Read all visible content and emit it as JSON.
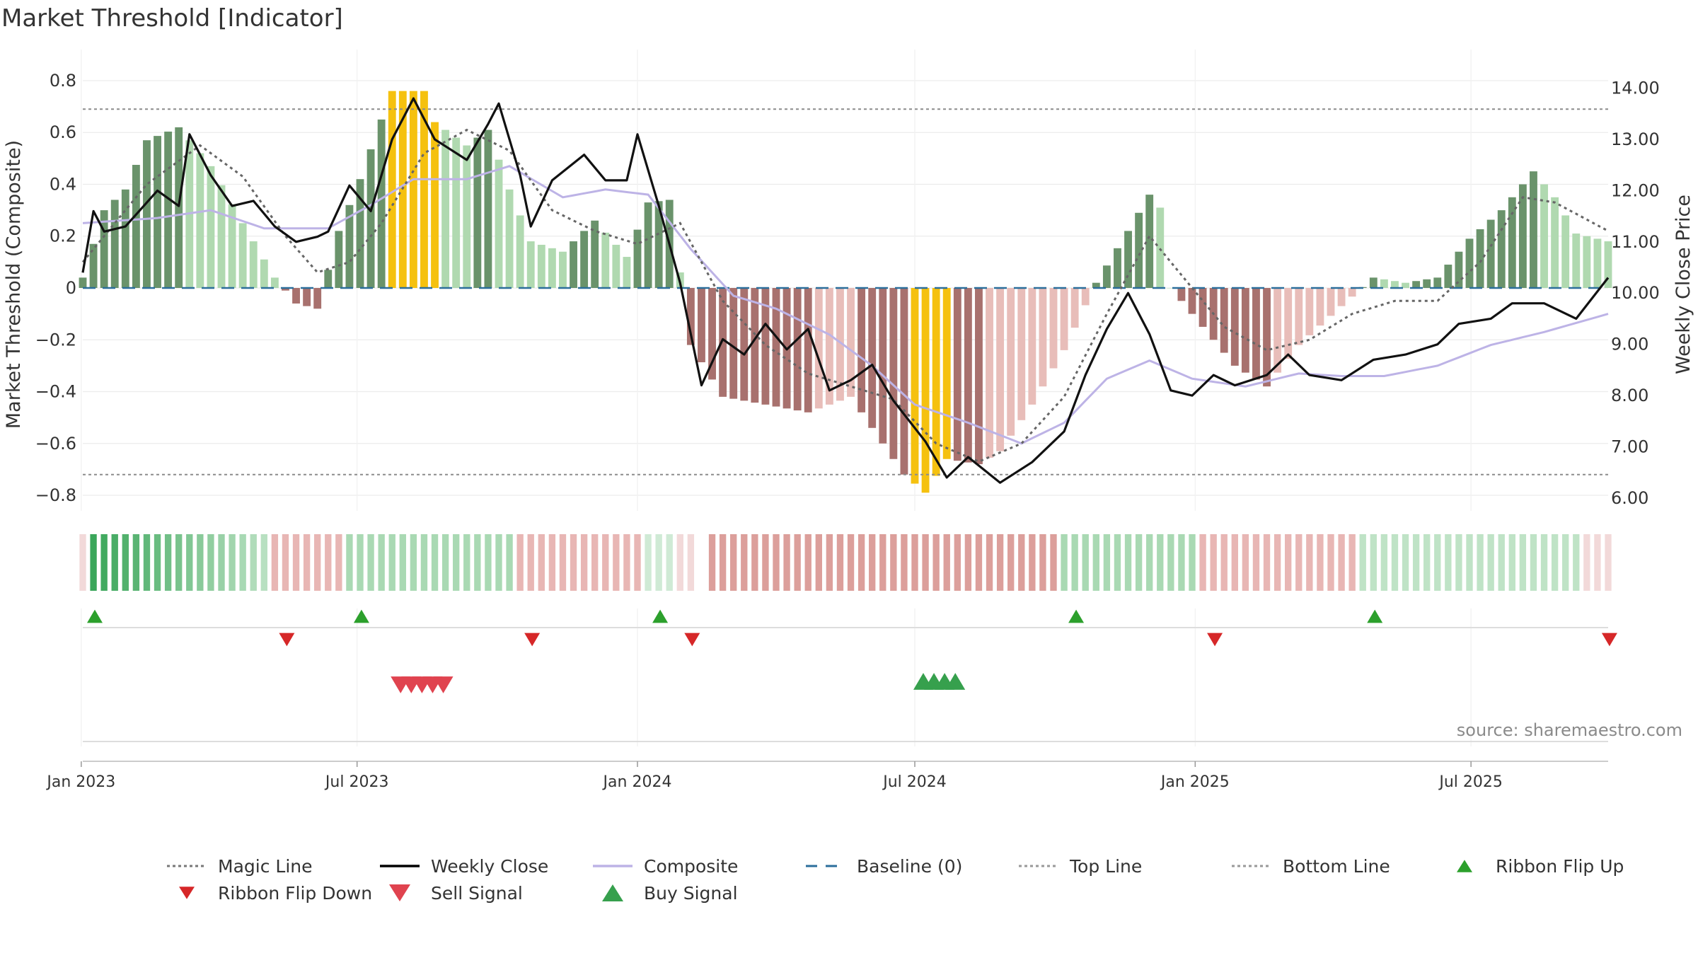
{
  "chart_data": {
    "type": "bar",
    "title": "Market Threshold [Indicator]",
    "ylabel_left": "Market Threshold (Composite)",
    "ylabel_right": "Weekly Close Price",
    "source": "source: sharemaestro.com",
    "x_range": [
      "2023-01-02",
      "2025-09-29"
    ],
    "ylim_left": [
      -0.86,
      0.86
    ],
    "ylim_right": [
      5.75,
      14.45
    ],
    "left_ticks": [
      0.8,
      0.6,
      0.4,
      0.2,
      0,
      -0.2,
      -0.4,
      -0.6,
      -0.8
    ],
    "left_tick_labels": [
      "0.8",
      "0.6",
      "0.4",
      "0.2",
      "0",
      "−0.2",
      "−0.4",
      "−0.6",
      "−0.8"
    ],
    "right_ticks": [
      14,
      13,
      12,
      11,
      10,
      9,
      8,
      7,
      6
    ],
    "right_tick_labels": [
      "14.00",
      "13.00",
      "12.00",
      "11.00",
      "10.00",
      "9.00",
      "8.00",
      "7.00",
      "6.00"
    ],
    "x_ticks": [
      {
        "date": "2023-01-01",
        "label": "Jan 2023"
      },
      {
        "date": "2023-07-01",
        "label": "Jul 2023"
      },
      {
        "date": "2024-01-01",
        "label": "Jan 2024"
      },
      {
        "date": "2024-07-01",
        "label": "Jul 2024"
      },
      {
        "date": "2025-01-01",
        "label": "Jan 2025"
      },
      {
        "date": "2025-07-01",
        "label": "Jul 2025"
      }
    ],
    "top_line": 0.69,
    "bottom_line": -0.72,
    "histogram_anchors": [
      [
        "2023-01-02",
        0.04
      ],
      [
        "2023-01-16",
        0.3
      ],
      [
        "2023-01-30",
        0.38
      ],
      [
        "2023-02-13",
        0.57
      ],
      [
        "2023-03-06",
        0.62
      ],
      [
        "2023-03-27",
        0.47
      ],
      [
        "2023-04-17",
        0.25
      ],
      [
        "2023-05-08",
        0.04
      ],
      [
        "2023-05-22",
        -0.06
      ],
      [
        "2023-06-05",
        -0.08
      ],
      [
        "2023-06-19",
        0.22
      ],
      [
        "2023-07-03",
        0.42
      ],
      [
        "2023-07-17",
        0.65
      ],
      [
        "2023-07-24",
        0.76
      ],
      [
        "2023-08-14",
        0.76
      ],
      [
        "2023-08-21",
        0.64
      ],
      [
        "2023-09-11",
        0.55
      ],
      [
        "2023-09-25",
        0.61
      ],
      [
        "2023-10-09",
        0.38
      ],
      [
        "2023-10-23",
        0.18
      ],
      [
        "2023-11-13",
        0.14
      ],
      [
        "2023-12-04",
        0.26
      ],
      [
        "2023-12-25",
        0.12
      ],
      [
        "2024-01-08",
        0.33
      ],
      [
        "2024-01-22",
        0.34
      ],
      [
        "2024-02-05",
        -0.22
      ],
      [
        "2024-02-26",
        -0.42
      ],
      [
        "2024-03-25",
        -0.45
      ],
      [
        "2024-04-22",
        -0.48
      ],
      [
        "2024-05-20",
        -0.42
      ],
      [
        "2024-06-10",
        -0.6
      ],
      [
        "2024-06-24",
        -0.72
      ],
      [
        "2024-07-08",
        -0.79
      ],
      [
        "2024-07-22",
        -0.66
      ],
      [
        "2024-08-12",
        -0.68
      ],
      [
        "2024-08-26",
        -0.63
      ],
      [
        "2024-09-16",
        -0.45
      ],
      [
        "2024-10-07",
        -0.24
      ],
      [
        "2024-10-28",
        0.02
      ],
      [
        "2024-11-18",
        0.22
      ],
      [
        "2024-12-02",
        0.36
      ],
      [
        "2024-12-09",
        0.31
      ],
      [
        "2024-12-16",
        0.0
      ],
      [
        "2025-01-06",
        -0.15
      ],
      [
        "2025-01-27",
        -0.3
      ],
      [
        "2025-02-17",
        -0.38
      ],
      [
        "2025-03-10",
        -0.22
      ],
      [
        "2025-04-07",
        -0.07
      ],
      [
        "2025-04-28",
        0.04
      ],
      [
        "2025-05-19",
        0.02
      ],
      [
        "2025-06-09",
        0.04
      ],
      [
        "2025-06-30",
        0.19
      ],
      [
        "2025-07-21",
        0.3
      ],
      [
        "2025-08-11",
        0.45
      ],
      [
        "2025-08-25",
        0.35
      ],
      [
        "2025-09-08",
        0.21
      ],
      [
        "2025-09-29",
        0.18
      ]
    ],
    "weekly_close_anchors": [
      [
        "2023-01-02",
        10.4
      ],
      [
        "2023-01-09",
        11.6
      ],
      [
        "2023-01-16",
        11.2
      ],
      [
        "2023-01-30",
        11.3
      ],
      [
        "2023-02-20",
        12.0
      ],
      [
        "2023-03-06",
        11.7
      ],
      [
        "2023-03-13",
        13.1
      ],
      [
        "2023-03-27",
        12.3
      ],
      [
        "2023-04-10",
        11.7
      ],
      [
        "2023-04-24",
        11.8
      ],
      [
        "2023-05-08",
        11.3
      ],
      [
        "2023-05-22",
        11.0
      ],
      [
        "2023-06-05",
        11.1
      ],
      [
        "2023-06-12",
        11.2
      ],
      [
        "2023-06-26",
        12.1
      ],
      [
        "2023-07-10",
        11.6
      ],
      [
        "2023-07-24",
        13.0
      ],
      [
        "2023-08-07",
        13.8
      ],
      [
        "2023-08-21",
        13.0
      ],
      [
        "2023-09-11",
        12.6
      ],
      [
        "2023-09-25",
        13.3
      ],
      [
        "2023-10-02",
        13.7
      ],
      [
        "2023-10-16",
        12.3
      ],
      [
        "2023-10-23",
        11.3
      ],
      [
        "2023-11-06",
        12.2
      ],
      [
        "2023-11-27",
        12.7
      ],
      [
        "2023-12-11",
        12.2
      ],
      [
        "2023-12-25",
        12.2
      ],
      [
        "2024-01-01",
        13.1
      ],
      [
        "2024-01-15",
        11.7
      ],
      [
        "2024-01-29",
        10.2
      ],
      [
        "2024-02-12",
        8.2
      ],
      [
        "2024-02-26",
        9.1
      ],
      [
        "2024-03-11",
        8.8
      ],
      [
        "2024-03-25",
        9.4
      ],
      [
        "2024-04-08",
        8.9
      ],
      [
        "2024-04-22",
        9.3
      ],
      [
        "2024-05-06",
        8.1
      ],
      [
        "2024-05-20",
        8.3
      ],
      [
        "2024-06-03",
        8.6
      ],
      [
        "2024-06-17",
        7.9
      ],
      [
        "2024-07-08",
        7.1
      ],
      [
        "2024-07-22",
        6.4
      ],
      [
        "2024-08-05",
        6.8
      ],
      [
        "2024-08-26",
        6.3
      ],
      [
        "2024-09-16",
        6.7
      ],
      [
        "2024-10-07",
        7.3
      ],
      [
        "2024-10-21",
        8.4
      ],
      [
        "2024-11-04",
        9.3
      ],
      [
        "2024-11-18",
        10.0
      ],
      [
        "2024-12-02",
        9.2
      ],
      [
        "2024-12-16",
        8.1
      ],
      [
        "2024-12-30",
        8.0
      ],
      [
        "2025-01-13",
        8.4
      ],
      [
        "2025-01-27",
        8.2
      ],
      [
        "2025-02-17",
        8.4
      ],
      [
        "2025-03-03",
        8.8
      ],
      [
        "2025-03-17",
        8.4
      ],
      [
        "2025-04-07",
        8.3
      ],
      [
        "2025-04-28",
        8.7
      ],
      [
        "2025-05-19",
        8.8
      ],
      [
        "2025-06-09",
        9.0
      ],
      [
        "2025-06-23",
        9.4
      ],
      [
        "2025-07-14",
        9.5
      ],
      [
        "2025-07-28",
        9.8
      ],
      [
        "2025-08-18",
        9.8
      ],
      [
        "2025-09-08",
        9.5
      ],
      [
        "2025-09-29",
        10.3
      ]
    ],
    "magic_line_anchors": [
      [
        "2023-01-02",
        0.1
      ],
      [
        "2023-02-13",
        0.4
      ],
      [
        "2023-03-20",
        0.55
      ],
      [
        "2023-04-17",
        0.43
      ],
      [
        "2023-05-15",
        0.2
      ],
      [
        "2023-06-05",
        0.06
      ],
      [
        "2023-06-26",
        0.1
      ],
      [
        "2023-07-17",
        0.25
      ],
      [
        "2023-08-14",
        0.52
      ],
      [
        "2023-09-11",
        0.61
      ],
      [
        "2023-10-09",
        0.53
      ],
      [
        "2023-11-06",
        0.3
      ],
      [
        "2023-12-04",
        0.22
      ],
      [
        "2024-01-01",
        0.17
      ],
      [
        "2024-01-29",
        0.25
      ],
      [
        "2024-02-26",
        -0.05
      ],
      [
        "2024-03-25",
        -0.22
      ],
      [
        "2024-04-22",
        -0.33
      ],
      [
        "2024-05-20",
        -0.38
      ],
      [
        "2024-06-17",
        -0.43
      ],
      [
        "2024-07-15",
        -0.6
      ],
      [
        "2024-08-12",
        -0.67
      ],
      [
        "2024-09-09",
        -0.6
      ],
      [
        "2024-10-07",
        -0.42
      ],
      [
        "2024-11-04",
        -0.1
      ],
      [
        "2024-12-02",
        0.2
      ],
      [
        "2024-12-23",
        0.05
      ],
      [
        "2025-01-20",
        -0.15
      ],
      [
        "2025-02-17",
        -0.24
      ],
      [
        "2025-03-17",
        -0.2
      ],
      [
        "2025-04-14",
        -0.1
      ],
      [
        "2025-05-12",
        -0.05
      ],
      [
        "2025-06-09",
        -0.05
      ],
      [
        "2025-07-07",
        0.1
      ],
      [
        "2025-08-04",
        0.35
      ],
      [
        "2025-08-25",
        0.33
      ],
      [
        "2025-09-29",
        0.22
      ]
    ],
    "composite_anchors": [
      [
        "2023-01-02",
        0.25
      ],
      [
        "2023-02-20",
        0.27
      ],
      [
        "2023-03-27",
        0.3
      ],
      [
        "2023-05-01",
        0.23
      ],
      [
        "2023-06-12",
        0.23
      ],
      [
        "2023-07-10",
        0.32
      ],
      [
        "2023-08-07",
        0.42
      ],
      [
        "2023-09-11",
        0.42
      ],
      [
        "2023-10-09",
        0.47
      ],
      [
        "2023-11-13",
        0.35
      ],
      [
        "2023-12-11",
        0.38
      ],
      [
        "2024-01-08",
        0.36
      ],
      [
        "2024-02-05",
        0.15
      ],
      [
        "2024-03-04",
        -0.03
      ],
      [
        "2024-04-01",
        -0.08
      ],
      [
        "2024-05-06",
        -0.18
      ],
      [
        "2024-06-03",
        -0.3
      ],
      [
        "2024-07-01",
        -0.45
      ],
      [
        "2024-08-05",
        -0.52
      ],
      [
        "2024-09-09",
        -0.6
      ],
      [
        "2024-10-07",
        -0.52
      ],
      [
        "2024-11-04",
        -0.35
      ],
      [
        "2024-12-02",
        -0.28
      ],
      [
        "2024-12-30",
        -0.35
      ],
      [
        "2025-02-03",
        -0.38
      ],
      [
        "2025-03-10",
        -0.33
      ],
      [
        "2025-04-07",
        -0.34
      ],
      [
        "2025-05-05",
        -0.34
      ],
      [
        "2025-06-09",
        -0.3
      ],
      [
        "2025-07-14",
        -0.22
      ],
      [
        "2025-08-18",
        -0.17
      ],
      [
        "2025-09-29",
        -0.1
      ]
    ],
    "yellow_weeks": [
      [
        "2023-07-24",
        "2023-08-21"
      ],
      [
        "2024-07-01",
        "2024-07-22"
      ]
    ],
    "ribbon_segments": [
      {
        "start": "2023-01-02",
        "end": "2023-01-02",
        "color": "#f2d9d9"
      },
      {
        "start": "2023-01-09",
        "end": "2023-05-07",
        "color": "green"
      },
      {
        "start": "2023-05-08",
        "end": "2023-06-25",
        "color": "#e8b6b4"
      },
      {
        "start": "2023-06-26",
        "end": "2023-10-15",
        "color": "#a9d9b3"
      },
      {
        "start": "2023-10-16",
        "end": "2024-01-07",
        "color": "#e8b6b4"
      },
      {
        "start": "2024-01-08",
        "end": "2024-01-28",
        "color": "#cfead5"
      },
      {
        "start": "2024-01-29",
        "end": "2024-02-11",
        "color": "#f2d9d9"
      },
      {
        "start": "2024-02-19",
        "end": "2024-10-06",
        "color": "#dc9f9b"
      },
      {
        "start": "2024-10-07",
        "end": "2025-01-05",
        "color": "#a9d9b3"
      },
      {
        "start": "2025-01-06",
        "end": "2025-04-20",
        "color": "#e8b6b4"
      },
      {
        "start": "2025-04-21",
        "end": "2025-09-14",
        "color": "#bfe3c6"
      },
      {
        "start": "2025-09-15",
        "end": "2025-09-29",
        "color": "#f2d9d9"
      }
    ],
    "ribbon_flip_up": [
      "2023-01-02",
      "2023-06-26",
      "2024-01-08",
      "2024-10-07",
      "2025-04-21"
    ],
    "ribbon_flip_down": [
      "2023-05-08",
      "2023-10-16",
      "2024-01-29",
      "2025-01-06",
      "2025-09-22"
    ],
    "sell_signals": [
      "2023-07-24",
      "2023-07-31",
      "2023-08-07",
      "2023-08-14",
      "2023-08-21"
    ],
    "buy_signals": [
      "2024-07-01",
      "2024-07-08",
      "2024-07-15",
      "2024-07-22"
    ],
    "legend": [
      {
        "name": "Magic Line",
        "kind": "dotted",
        "color": "#777777"
      },
      {
        "name": "Weekly Close",
        "kind": "solid",
        "color": "#000000"
      },
      {
        "name": "Composite",
        "kind": "solid",
        "color": "#bdb3e6"
      },
      {
        "name": "Baseline (0)",
        "kind": "dashed",
        "color": "#2b6e9b"
      },
      {
        "name": "Top Line",
        "kind": "dotted",
        "color": "#999999"
      },
      {
        "name": "Bottom Line",
        "kind": "dotted",
        "color": "#999999"
      },
      {
        "name": "Ribbon Flip Up",
        "kind": "up",
        "color": "#2ca02c"
      },
      {
        "name": "Ribbon Flip Down",
        "kind": "down",
        "color": "#d62728"
      },
      {
        "name": "Sell Signal",
        "kind": "down",
        "color": "#e0434f"
      },
      {
        "name": "Buy Signal",
        "kind": "up",
        "color": "#36a04d"
      }
    ],
    "colors": {
      "pos_dark": "#6a936b",
      "pos_light": "#b0d9b0",
      "neg_dark": "#a8716e",
      "neg_light": "#e8bdb9",
      "highlight": "#f5c10f",
      "baseline": "#2b6e9b",
      "ribbon_green_dark": "#3aa65a",
      "ribbon_green_light": "#a9d9b3"
    },
    "grid": true
  }
}
